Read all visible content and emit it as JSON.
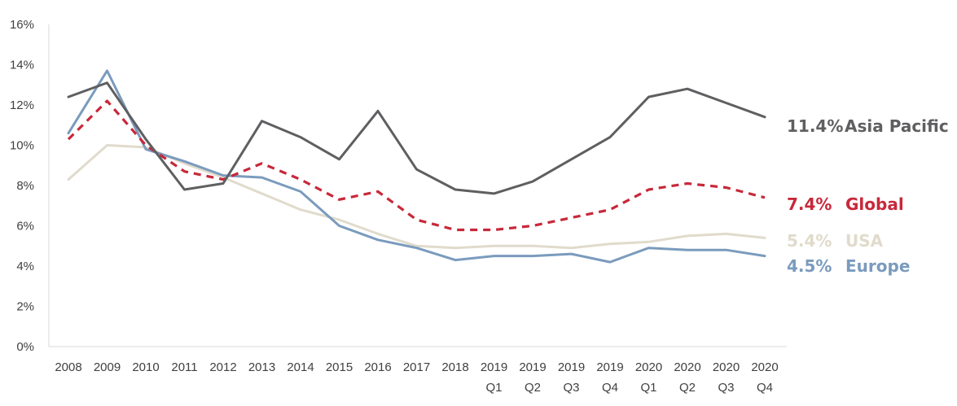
{
  "chart_data": {
    "type": "line",
    "title": "",
    "xlabel": "",
    "ylabel": "",
    "ylim": [
      0,
      16
    ],
    "yticks": [
      "0%",
      "2%",
      "4%",
      "6%",
      "8%",
      "10%",
      "12%",
      "14%",
      "16%"
    ],
    "categories": [
      {
        "line1": "2008",
        "line2": ""
      },
      {
        "line1": "2009",
        "line2": ""
      },
      {
        "line1": "2010",
        "line2": ""
      },
      {
        "line1": "2011",
        "line2": ""
      },
      {
        "line1": "2012",
        "line2": ""
      },
      {
        "line1": "2013",
        "line2": ""
      },
      {
        "line1": "2014",
        "line2": ""
      },
      {
        "line1": "2015",
        "line2": ""
      },
      {
        "line1": "2016",
        "line2": ""
      },
      {
        "line1": "2017",
        "line2": ""
      },
      {
        "line1": "2018",
        "line2": ""
      },
      {
        "line1": "2019",
        "line2": "Q1"
      },
      {
        "line1": "2019",
        "line2": "Q2"
      },
      {
        "line1": "2019",
        "line2": "Q3"
      },
      {
        "line1": "2019",
        "line2": "Q4"
      },
      {
        "line1": "2020",
        "line2": "Q1"
      },
      {
        "line1": "2020",
        "line2": "Q2"
      },
      {
        "line1": "2020",
        "line2": "Q3"
      },
      {
        "line1": "2020",
        "line2": "Q4"
      }
    ],
    "grid": false,
    "legend": "direct labels at line ends (right)",
    "series": [
      {
        "name": "Asia Pacific",
        "end_label": "11.4%",
        "color": "#5f5f62",
        "dashed": false,
        "values": [
          12.4,
          13.1,
          10.3,
          7.8,
          8.1,
          11.2,
          10.4,
          9.3,
          11.7,
          8.8,
          7.8,
          7.6,
          8.2,
          9.3,
          10.4,
          12.4,
          12.8,
          12.1,
          11.4
        ]
      },
      {
        "name": "Global",
        "end_label": "7.4%",
        "color": "#c8283a",
        "dashed": true,
        "values": [
          10.3,
          12.2,
          10.0,
          8.7,
          8.3,
          9.1,
          8.3,
          7.3,
          7.7,
          6.3,
          5.8,
          5.8,
          6.0,
          6.4,
          6.8,
          7.8,
          8.1,
          7.9,
          7.4
        ]
      },
      {
        "name": "USA",
        "end_label": "5.4%",
        "color": "#e0dbcc",
        "dashed": false,
        "values": [
          8.3,
          10.0,
          9.9,
          9.1,
          8.4,
          7.6,
          6.8,
          6.3,
          5.6,
          5.0,
          4.9,
          5.0,
          5.0,
          4.9,
          5.1,
          5.2,
          5.5,
          5.6,
          5.4
        ]
      },
      {
        "name": "Europe",
        "end_label": "4.5%",
        "color": "#7a9bbd",
        "dashed": false,
        "values": [
          10.6,
          13.7,
          9.8,
          9.2,
          8.5,
          8.4,
          7.7,
          6.0,
          5.3,
          4.9,
          4.3,
          4.5,
          4.5,
          4.6,
          4.2,
          4.9,
          4.8,
          4.8,
          4.5
        ]
      }
    ]
  }
}
